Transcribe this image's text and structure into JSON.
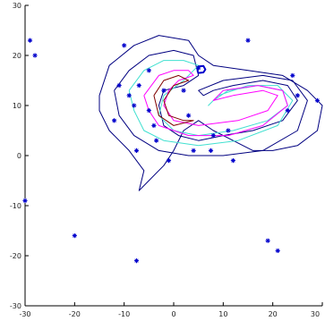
{
  "chart_data": {
    "type": "scatter",
    "title": "",
    "xlabel": "",
    "ylabel": "",
    "xlim": [
      -30,
      30
    ],
    "ylim": [
      -30,
      30
    ],
    "xticks": [
      -30,
      -20,
      -10,
      0,
      10,
      20,
      30
    ],
    "yticks": [
      -30,
      -20,
      -10,
      0,
      10,
      20,
      30
    ],
    "xtick_labels": [
      "-30",
      "-20",
      "-10",
      "0",
      "10",
      "20",
      "30"
    ],
    "ytick_labels": [
      "-30",
      "-20",
      "-10",
      "0",
      "10",
      "20",
      "30"
    ],
    "grid": false,
    "legend": "none",
    "marker_color": "#0000cc",
    "contour_colors": [
      "#000080",
      "#40e0d0",
      "#ff00ff",
      "#800000"
    ],
    "points": [
      [
        -29,
        23
      ],
      [
        -28,
        20
      ],
      [
        -30,
        -9
      ],
      [
        -20,
        -16
      ],
      [
        -7.5,
        -21
      ],
      [
        -10,
        22
      ],
      [
        -11,
        14
      ],
      [
        -12,
        7
      ],
      [
        -7.5,
        1
      ],
      [
        -9,
        12
      ],
      [
        -8,
        10
      ],
      [
        -7,
        14
      ],
      [
        -5,
        17
      ],
      [
        -5,
        9
      ],
      [
        -4,
        6
      ],
      [
        -3.5,
        3
      ],
      [
        -2,
        13
      ],
      [
        -1,
        -1
      ],
      [
        2,
        13
      ],
      [
        3,
        8
      ],
      [
        4,
        1
      ],
      [
        5,
        17.5
      ],
      [
        7.5,
        1
      ],
      [
        8,
        4
      ],
      [
        11,
        5
      ],
      [
        12,
        -1
      ],
      [
        15,
        23
      ],
      [
        23,
        9
      ],
      [
        24,
        16
      ],
      [
        25,
        12
      ],
      [
        29,
        11
      ],
      [
        19,
        -17
      ],
      [
        21,
        -19
      ]
    ],
    "contours": [
      {
        "level": "outer",
        "color": "#000080",
        "path": [
          [
            -15,
            12
          ],
          [
            -13,
            18
          ],
          [
            -8,
            22
          ],
          [
            -3,
            24
          ],
          [
            3,
            23
          ],
          [
            5,
            20
          ],
          [
            8,
            18
          ],
          [
            15,
            17
          ],
          [
            22,
            16
          ],
          [
            27,
            13
          ],
          [
            30,
            10
          ],
          [
            29,
            5
          ],
          [
            25,
            2
          ],
          [
            20,
            1
          ],
          [
            16,
            1
          ],
          [
            12,
            3
          ],
          [
            8,
            5
          ],
          [
            5,
            7
          ],
          [
            2,
            5
          ],
          [
            0,
            1
          ],
          [
            -2,
            -2
          ],
          [
            -5,
            -5
          ],
          [
            -7,
            -7
          ],
          [
            -6,
            -3
          ],
          [
            -9,
            1
          ],
          [
            -13,
            5
          ],
          [
            -15,
            9
          ],
          [
            -15,
            12
          ]
        ]
      },
      {
        "level": "inner-blue",
        "color": "#000080",
        "path": [
          [
            -12,
            13
          ],
          [
            -9,
            17
          ],
          [
            -5,
            20
          ],
          [
            0,
            21
          ],
          [
            4,
            20
          ],
          [
            5,
            16
          ],
          [
            2,
            14
          ],
          [
            -2,
            13
          ],
          [
            -3,
            10
          ],
          [
            -2,
            6
          ],
          [
            1,
            4
          ],
          [
            5,
            3
          ],
          [
            10,
            4
          ],
          [
            16,
            5
          ],
          [
            22,
            7
          ],
          [
            25,
            11
          ],
          [
            23,
            14
          ],
          [
            18,
            15
          ],
          [
            12,
            14
          ],
          [
            8,
            13
          ],
          [
            6,
            12
          ],
          [
            5,
            13
          ],
          [
            10,
            15
          ],
          [
            18,
            16
          ],
          [
            24,
            15
          ],
          [
            27,
            11
          ],
          [
            25,
            5
          ],
          [
            18,
            1
          ],
          [
            10,
            0
          ],
          [
            3,
            0
          ],
          [
            -3,
            1
          ],
          [
            -8,
            4
          ],
          [
            -11,
            8
          ],
          [
            -12,
            13
          ]
        ]
      },
      {
        "level": "cyan",
        "color": "#40e0d0",
        "path": [
          [
            -9,
            13
          ],
          [
            -6,
            17
          ],
          [
            -2,
            19
          ],
          [
            2,
            19
          ],
          [
            5,
            18
          ],
          [
            2,
            15
          ],
          [
            -2,
            12
          ],
          [
            -3,
            8
          ],
          [
            0,
            5
          ],
          [
            5,
            4
          ],
          [
            12,
            5
          ],
          [
            19,
            7
          ],
          [
            23,
            10
          ],
          [
            22,
            13
          ],
          [
            17,
            14
          ],
          [
            11,
            13
          ],
          [
            8,
            11
          ],
          [
            7,
            10
          ],
          [
            9,
            12
          ],
          [
            15,
            14
          ],
          [
            21,
            14
          ],
          [
            24,
            11
          ],
          [
            21,
            6
          ],
          [
            13,
            3
          ],
          [
            5,
            2
          ],
          [
            -2,
            3
          ],
          [
            -6,
            5
          ],
          [
            -8,
            9
          ],
          [
            -9,
            13
          ]
        ]
      },
      {
        "level": "magenta",
        "color": "#ff00ff",
        "path": [
          [
            -6,
            12
          ],
          [
            -3,
            16
          ],
          [
            0,
            17
          ],
          [
            3,
            17
          ],
          [
            4,
            16
          ],
          [
            1,
            15
          ],
          [
            -1,
            13
          ],
          [
            -2,
            10
          ],
          [
            0,
            7
          ],
          [
            5,
            6
          ],
          [
            13,
            7
          ],
          [
            19,
            9
          ],
          [
            21,
            12
          ],
          [
            18,
            13
          ],
          [
            12,
            12
          ],
          [
            8,
            11
          ],
          [
            10,
            13
          ],
          [
            17,
            14
          ],
          [
            22,
            13
          ],
          [
            23,
            10
          ],
          [
            18,
            6
          ],
          [
            11,
            4
          ],
          [
            3,
            4
          ],
          [
            -3,
            6
          ],
          [
            -5,
            9
          ],
          [
            -6,
            12
          ]
        ]
      },
      {
        "level": "maroon",
        "color": "#800000",
        "path": [
          [
            -4,
            12
          ],
          [
            -2,
            15
          ],
          [
            1,
            16
          ],
          [
            3,
            15
          ],
          [
            0,
            14
          ],
          [
            -2,
            11
          ],
          [
            -1,
            8
          ],
          [
            2,
            7
          ],
          [
            4,
            7
          ],
          [
            0,
            6
          ],
          [
            -3,
            8
          ],
          [
            -4,
            12
          ]
        ]
      },
      {
        "level": "peak",
        "color": "#0000cc",
        "path": [
          [
            4.8,
            16.8
          ],
          [
            5,
            17.8
          ],
          [
            6,
            17.9
          ],
          [
            6.4,
            17.2
          ],
          [
            6,
            16.6
          ],
          [
            5,
            16.5
          ],
          [
            4.8,
            16.8
          ]
        ]
      }
    ]
  }
}
